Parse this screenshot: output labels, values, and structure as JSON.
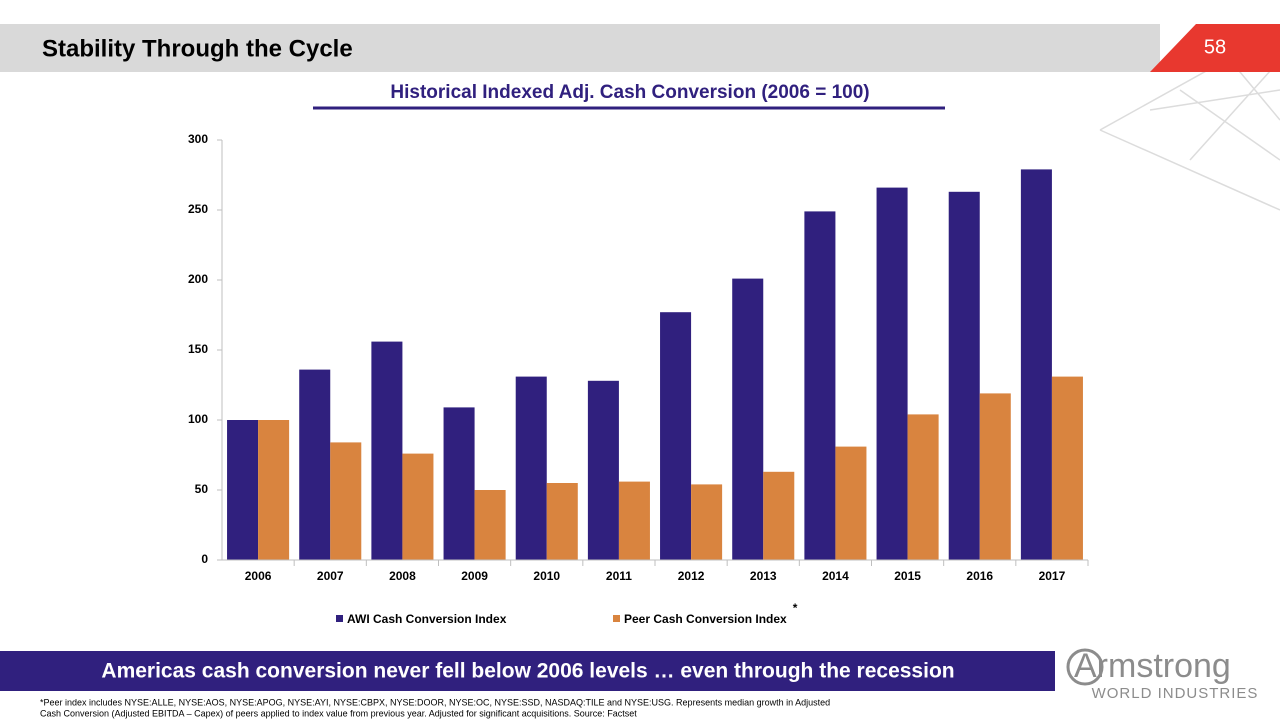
{
  "header": {
    "title": "Stability Through the Cycle",
    "page_number": "58"
  },
  "chart_data": {
    "type": "bar",
    "title": "Historical  Indexed  Adj.  Cash  Conversion  (2006 = 100)",
    "categories": [
      "2006",
      "2007",
      "2008",
      "2009",
      "2010",
      "2011",
      "2012",
      "2013",
      "2014",
      "2015",
      "2016",
      "2017"
    ],
    "series": [
      {
        "name": "AWI Cash Conversion Index",
        "color": "#30207e",
        "values": [
          100,
          136,
          156,
          109,
          131,
          128,
          177,
          201,
          249,
          266,
          263,
          279
        ]
      },
      {
        "name": "Peer Cash Conversion Index",
        "color": "#d9843f",
        "values": [
          100,
          84,
          76,
          50,
          55,
          56,
          54,
          63,
          81,
          104,
          119,
          131
        ]
      }
    ],
    "annotation": "*",
    "ylim": [
      0,
      300
    ],
    "yticks": [
      0,
      50,
      100,
      150,
      200,
      250,
      300
    ],
    "grid": false,
    "legend": "bottom"
  },
  "banner": "Americas cash conversion never fell below 2006 levels … even through the recession",
  "footnote": [
    "*Peer index includes NYSE:ALLE, NYSE:AOS, NYSE:APOG, NYSE:AYI, NYSE:CBPX, NYSE:DOOR, NYSE:OC, NYSE:SSD, NASDAQ:TILE and NYSE:USG. Represents median growth  in Adjusted",
    "Cash Conversion (Adjusted EBITDA – Capex) of peers applied  to index value from previous year. Adjusted for significant acquisitions. Source: Factset"
  ],
  "logo": {
    "name": "Armstrong",
    "subtitle": "WORLD INDUSTRIES"
  }
}
